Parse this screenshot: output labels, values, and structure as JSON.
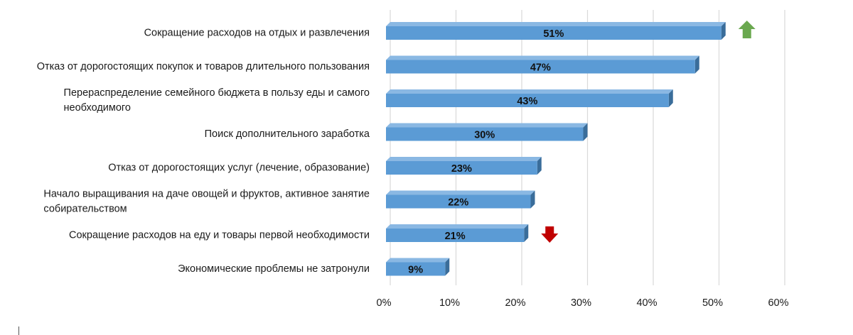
{
  "chart_data": {
    "type": "bar",
    "orientation": "horizontal",
    "categories": [
      [
        "Сокращение расходов на отдых и развлечения"
      ],
      [
        "Отказ от дорогостоящих покупок и товаров длительного пользования"
      ],
      [
        "Перераспределение семейного бюджета в пользу еды и самого",
        "необходимого"
      ],
      [
        "Поиск дополнительного заработка"
      ],
      [
        "Отказ от дорогостоящих услуг (лечение, образование)"
      ],
      [
        "Начало выращивания на даче овощей и фруктов, активное занятие",
        "собирательством"
      ],
      [
        "Сокращение расходов на еду и товары первой необходимости"
      ],
      [
        "Экономические проблемы не затронули"
      ]
    ],
    "values": [
      51,
      47,
      43,
      30,
      23,
      22,
      21,
      9
    ],
    "data_labels": [
      "51%",
      "47%",
      "43%",
      "30%",
      "23%",
      "22%",
      "21%",
      "9%"
    ],
    "xlim": [
      0,
      60
    ],
    "x_ticks": [
      0,
      10,
      20,
      30,
      40,
      50,
      60
    ],
    "x_tick_labels": [
      "0%",
      "10%",
      "20%",
      "30%",
      "40%",
      "50%",
      "60%"
    ],
    "grid": true,
    "title": "",
    "xlabel": "",
    "ylabel": "",
    "annotations": [
      {
        "type": "arrow-up",
        "category_index": 0,
        "color": "#6aa84f"
      },
      {
        "type": "arrow-down",
        "category_index": 6,
        "color": "#c00000"
      }
    ],
    "colors": {
      "bar_front": "#5b9bd5",
      "bar_top": "#8ab8e3",
      "bar_side": "#3a6d9a"
    }
  }
}
